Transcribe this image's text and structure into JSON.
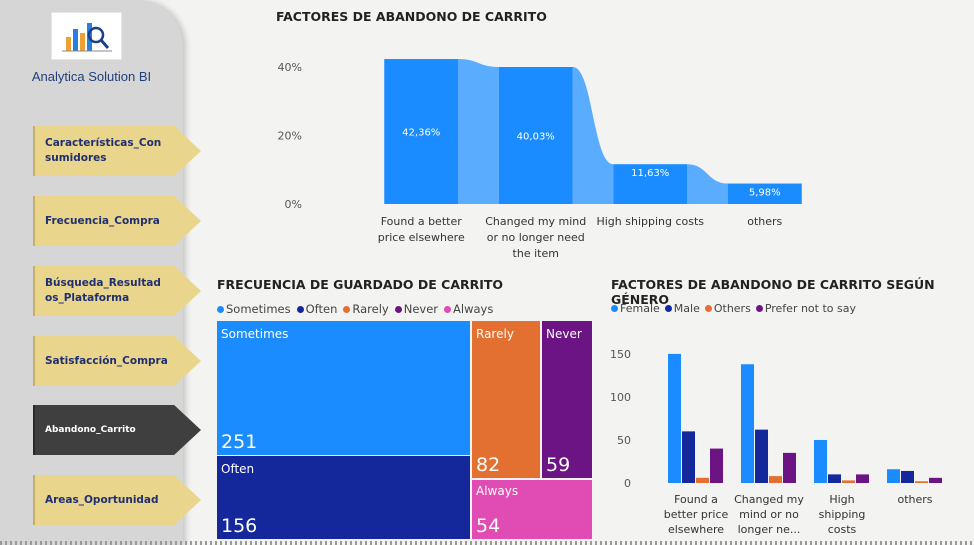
{
  "sidebar": {
    "brand": "Analytica Solution BI",
    "logo_icon": "chart-magnifier-icon",
    "items": [
      {
        "label": "Características_Consumidores",
        "active": false
      },
      {
        "label": "Frecuencia_Compra",
        "active": false
      },
      {
        "label": "Búsqueda_Resultados_Plataforma",
        "active": false
      },
      {
        "label": "Satisfacción_Compra",
        "active": false
      },
      {
        "label": "Abandono_Carrito",
        "active": true
      },
      {
        "label": "Areas_Oportunidad",
        "active": false
      }
    ]
  },
  "titles": {
    "ribbon": "FACTORES DE ABANDONO DE CARRITO",
    "treemap": "FRECUENCIA DE GUARDADO DE CARRITO",
    "grouped": "FACTORES DE ABANDONO DE CARRITO SEGÚN GÉNERO"
  },
  "chart_data": [
    {
      "type": "bar",
      "title": "FACTORES DE ABANDONO DE CARRITO",
      "categories": [
        "Found a better price elsewhere",
        "Changed my mind or no longer need the item",
        "High shipping costs",
        "others"
      ],
      "category_lines": [
        [
          "Found a better",
          "price elsewhere"
        ],
        [
          "Changed my mind",
          "or no longer need",
          "the item"
        ],
        [
          "High shipping costs"
        ],
        [
          "others"
        ]
      ],
      "values": [
        42.36,
        40.03,
        11.63,
        5.98
      ],
      "value_labels": [
        "42,36%",
        "40,03%",
        "11,63%",
        "5,98%"
      ],
      "y_ticks": [
        0,
        20,
        40
      ],
      "y_tick_labels": [
        "0%",
        "20%",
        "40%"
      ],
      "ylim": [
        0,
        45
      ],
      "colors": {
        "bar": "#1a8cff",
        "ribbon": "#5aacff"
      }
    },
    {
      "type": "treemap",
      "title": "FRECUENCIA DE GUARDADO DE CARRITO",
      "legend": [
        "Sometimes",
        "Often",
        "Rarely",
        "Never",
        "Always"
      ],
      "items": [
        {
          "label": "Sometimes",
          "value": 251,
          "color": "#1a8cff"
        },
        {
          "label": "Often",
          "value": 156,
          "color": "#14289b"
        },
        {
          "label": "Rarely",
          "value": 82,
          "color": "#e36f30"
        },
        {
          "label": "Never",
          "value": 59,
          "color": "#6c1484"
        },
        {
          "label": "Always",
          "value": 54,
          "color": "#e04bb4"
        }
      ]
    },
    {
      "type": "bar",
      "title": "FACTORES DE ABANDONO DE CARRITO SEGÚN GÉNERO",
      "category_lines": [
        [
          "Found a",
          "better price",
          "elsewhere"
        ],
        [
          "Changed my",
          "mind or no",
          "longer ne..."
        ],
        [
          "High",
          "shipping",
          "costs"
        ],
        [
          "others"
        ]
      ],
      "series": [
        {
          "name": "Female",
          "color": "#1a8cff",
          "values": [
            150,
            138,
            50,
            16
          ]
        },
        {
          "name": "Male",
          "color": "#14289b",
          "values": [
            60,
            62,
            10,
            14
          ]
        },
        {
          "name": "Others",
          "color": "#e36f30",
          "values": [
            6,
            8,
            3,
            2
          ]
        },
        {
          "name": "Prefer not to say",
          "color": "#6c1484",
          "values": [
            40,
            35,
            10,
            6
          ]
        }
      ],
      "y_ticks": [
        0,
        50,
        100,
        150
      ],
      "ylim": [
        0,
        165
      ]
    }
  ]
}
